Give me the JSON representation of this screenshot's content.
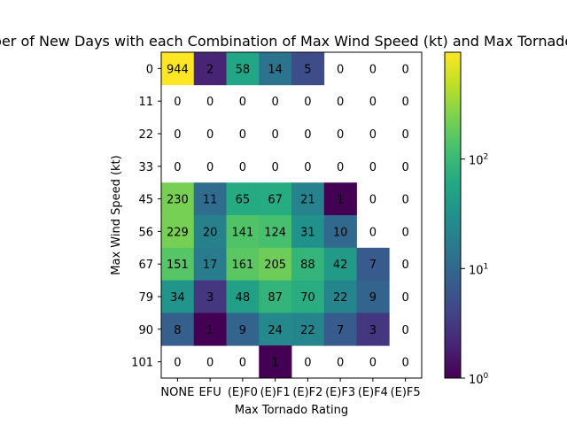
{
  "chart_data": {
    "type": "heatmap",
    "title": "Number of New Days with each Combination of Max Wind Speed (kt) and Max Tornado Rating",
    "xlabel": "Max Tornado Rating",
    "ylabel": "Max Wind Speed (kt)",
    "x_categories": [
      "NONE",
      "EFU",
      "(E)F0",
      "(E)F1",
      "(E)F2",
      "(E)F3",
      "(E)F4",
      "(E)F5"
    ],
    "y_categories": [
      "0",
      "11",
      "22",
      "33",
      "45",
      "56",
      "67",
      "79",
      "90",
      "101"
    ],
    "values": [
      [
        944,
        2,
        58,
        14,
        5,
        0,
        0,
        0
      ],
      [
        0,
        0,
        0,
        0,
        0,
        0,
        0,
        0
      ],
      [
        0,
        0,
        0,
        0,
        0,
        0,
        0,
        0
      ],
      [
        0,
        0,
        0,
        0,
        0,
        0,
        0,
        0
      ],
      [
        230,
        11,
        65,
        67,
        21,
        1,
        0,
        0
      ],
      [
        229,
        20,
        141,
        124,
        31,
        10,
        0,
        0
      ],
      [
        151,
        17,
        161,
        205,
        88,
        42,
        7,
        0
      ],
      [
        34,
        3,
        48,
        87,
        70,
        22,
        9,
        0
      ],
      [
        8,
        1,
        9,
        24,
        22,
        7,
        3,
        0
      ],
      [
        0,
        0,
        0,
        1,
        0,
        0,
        0,
        0
      ]
    ],
    "colorbar": {
      "scale": "log",
      "colormap": "viridis",
      "range": [
        1,
        944
      ],
      "ticks": [
        {
          "value": 1,
          "base": "10",
          "exp": "0"
        },
        {
          "value": 10,
          "base": "10",
          "exp": "1"
        },
        {
          "value": 100,
          "base": "10",
          "exp": "2"
        }
      ]
    },
    "zero_cells": "blank",
    "grid": false
  }
}
